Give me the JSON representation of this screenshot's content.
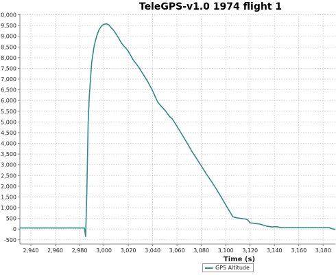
{
  "chart_data": {
    "type": "line",
    "title": "TeleGPS-v1.0 1974 flight 1",
    "xlabel": "Time (s)",
    "ylabel": "",
    "xlim": [
      2931,
      3190
    ],
    "ylim": [
      -700,
      10050
    ],
    "x_ticks": [
      2940,
      2960,
      2980,
      3000,
      3020,
      3040,
      3060,
      3080,
      3100,
      3120,
      3140,
      3160,
      3180
    ],
    "x_tick_labels": [
      "2,940",
      "2,960",
      "2,980",
      "3,000",
      "3,020",
      "3,040",
      "3,060",
      "3,080",
      "3,100",
      "3,120",
      "3,140",
      "3,160",
      "3,180"
    ],
    "y_ticks": [
      -500,
      0,
      500,
      1000,
      1500,
      2000,
      2500,
      3000,
      3500,
      4000,
      4500,
      5000,
      5500,
      6000,
      6500,
      7000,
      7500,
      8000,
      8500,
      9000,
      9500,
      10000
    ],
    "y_tick_labels": [
      "-500",
      "0",
      "500",
      "1,000",
      "1,500",
      "2,000",
      "2,500",
      "3,000",
      "3,500",
      "4,000",
      "4,500",
      "5,000",
      "5,500",
      "6,000",
      "6,500",
      "7,000",
      "7,500",
      "8,000",
      "8,500",
      "9,000",
      "9,500",
      "10,000"
    ],
    "grid": true,
    "legend_position": "bottom",
    "series": [
      {
        "name": "GPS Altitude",
        "color": "#2e8b8b",
        "x": [
          2931,
          2940,
          2960,
          2980,
          2984,
          2985,
          2986,
          2987,
          2988,
          2990,
          2992,
          2994,
          2996,
          2998,
          3000,
          3002,
          3004,
          3006,
          3008,
          3010,
          3012,
          3014,
          3016,
          3018,
          3020,
          3024,
          3028,
          3032,
          3036,
          3040,
          3042,
          3044,
          3046,
          3050,
          3054,
          3056,
          3060,
          3064,
          3068,
          3072,
          3076,
          3080,
          3084,
          3088,
          3092,
          3096,
          3100,
          3104,
          3106,
          3108,
          3110,
          3112,
          3114,
          3116,
          3118,
          3120,
          3122,
          3124,
          3126,
          3128,
          3130,
          3134,
          3138,
          3140,
          3142,
          3144,
          3146,
          3148,
          3150,
          3160,
          3170,
          3180,
          3185,
          3187,
          3190
        ],
        "y": [
          50,
          50,
          50,
          50,
          50,
          -350,
          1800,
          4900,
          6200,
          7800,
          8550,
          9000,
          9300,
          9480,
          9560,
          9580,
          9530,
          9400,
          9270,
          9100,
          8920,
          8720,
          8560,
          8450,
          8300,
          7900,
          7600,
          7250,
          6880,
          6450,
          6200,
          5950,
          5800,
          5550,
          5250,
          5150,
          4800,
          4420,
          4050,
          3650,
          3300,
          2950,
          2580,
          2250,
          1900,
          1520,
          1130,
          750,
          570,
          540,
          520,
          500,
          480,
          470,
          430,
          290,
          280,
          260,
          250,
          230,
          200,
          130,
          100,
          110,
          110,
          90,
          70,
          70,
          70,
          70,
          70,
          70,
          70,
          20,
          -20
        ]
      }
    ]
  }
}
